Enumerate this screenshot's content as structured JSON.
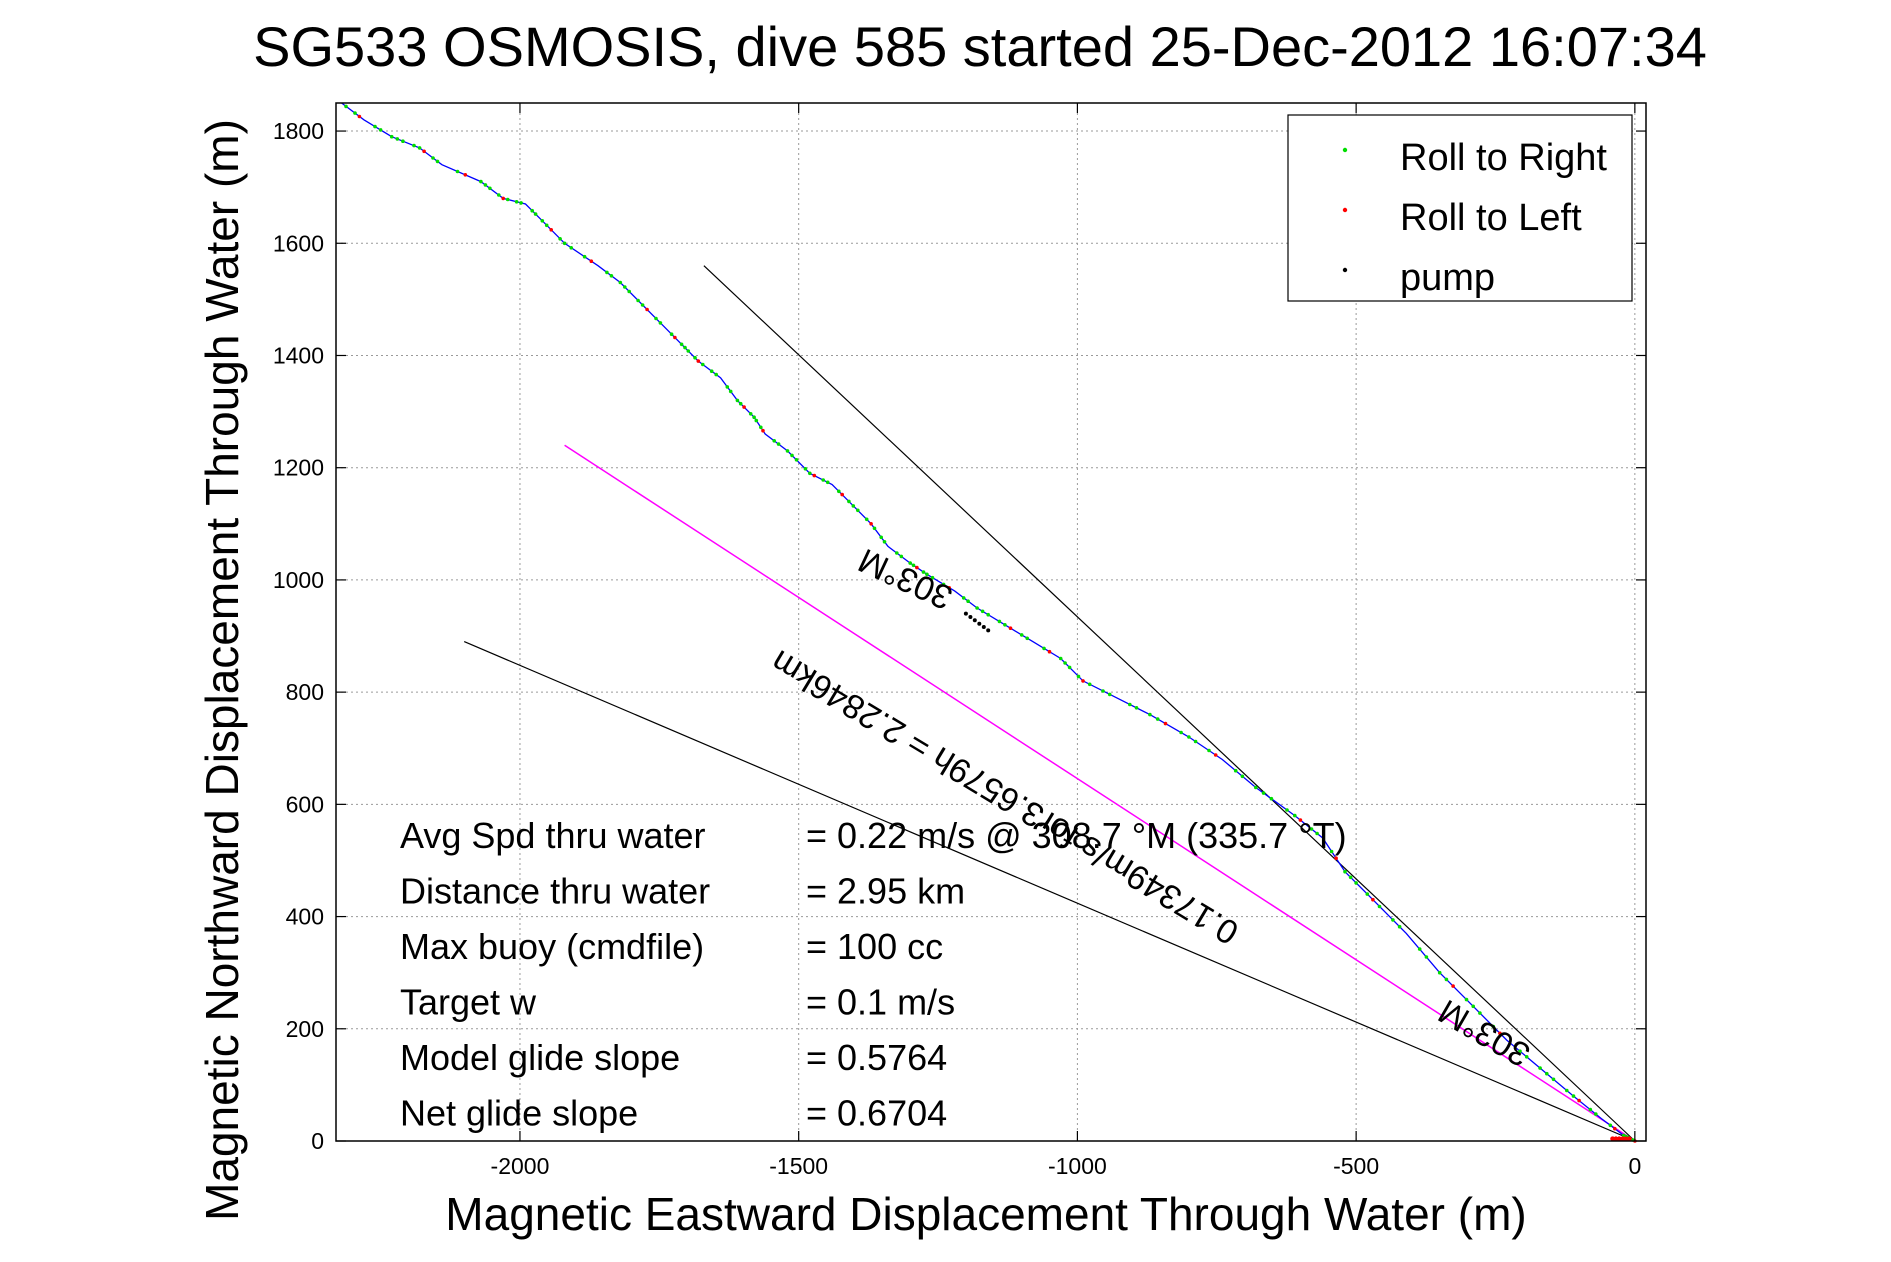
{
  "chart_data": {
    "type": "line",
    "title": "SG533 OSMOSIS, dive 585 started 25-Dec-2012 16:07:34",
    "xlabel": "Magnetic Eastward Displacement Through Water (m)",
    "ylabel": "Magnetic Northward Displacement Through Water (m)",
    "xlim": [
      -2330,
      20
    ],
    "ylim": [
      0,
      1850
    ],
    "xticks": [
      -2000,
      -1500,
      -1000,
      -500,
      0
    ],
    "yticks": [
      0,
      200,
      400,
      600,
      800,
      1000,
      1200,
      1400,
      1600,
      1800
    ],
    "grid": true,
    "legend_position": "top-right",
    "legend": [
      {
        "label": "Roll to Right",
        "color": "#00dd00"
      },
      {
        "label": "Roll to Left",
        "color": "#ff0000"
      },
      {
        "label": "pump",
        "color": "#000000"
      }
    ],
    "colors": {
      "track": "#0000ff",
      "course_line": "#ff00ff",
      "bracket": "#000000"
    },
    "series": [
      {
        "values": [
          [
            0,
            0
          ],
          [
            -20,
            10
          ],
          [
            -60,
            40
          ],
          [
            -110,
            80
          ],
          [
            -170,
            130
          ],
          [
            -230,
            180
          ],
          [
            -290,
            240
          ],
          [
            -350,
            300
          ],
          [
            -410,
            370
          ],
          [
            -470,
            430
          ],
          [
            -520,
            480
          ],
          [
            -560,
            540
          ],
          [
            -610,
            580
          ],
          [
            -680,
            630
          ],
          [
            -740,
            680
          ],
          [
            -800,
            720
          ],
          [
            -870,
            760
          ],
          [
            -930,
            790
          ],
          [
            -990,
            820
          ],
          [
            -1030,
            860
          ],
          [
            -1080,
            890
          ],
          [
            -1130,
            920
          ],
          [
            -1180,
            950
          ],
          [
            -1220,
            980
          ],
          [
            -1270,
            1010
          ],
          [
            -1300,
            1030
          ],
          [
            -1340,
            1060
          ],
          [
            -1370,
            1100
          ],
          [
            -1410,
            1140
          ],
          [
            -1440,
            1170
          ],
          [
            -1480,
            1190
          ],
          [
            -1520,
            1230
          ],
          [
            -1560,
            1260
          ],
          [
            -1580,
            1290
          ],
          [
            -1610,
            1320
          ],
          [
            -1640,
            1360
          ],
          [
            -1680,
            1390
          ],
          [
            -1710,
            1420
          ],
          [
            -1740,
            1450
          ],
          [
            -1780,
            1490
          ],
          [
            -1820,
            1530
          ],
          [
            -1860,
            1560
          ],
          [
            -1920,
            1600
          ],
          [
            -1960,
            1640
          ],
          [
            -1990,
            1670
          ],
          [
            -2030,
            1680
          ],
          [
            -2070,
            1710
          ],
          [
            -2140,
            1740
          ],
          [
            -2180,
            1770
          ],
          [
            -2230,
            1790
          ],
          [
            -2280,
            1820
          ],
          [
            -2320,
            1850
          ]
        ]
      },
      {
        "values": [
          [
            0,
            0
          ],
          [
            -1920,
            1240
          ]
        ]
      }
    ],
    "bracket_lines": [
      {
        "values": [
          [
            0,
            0
          ],
          [
            -1670,
            1560
          ]
        ]
      },
      {
        "values": [
          [
            0,
            0
          ],
          [
            -2100,
            890
          ]
        ]
      }
    ],
    "annotations": [
      {
        "text": "303°M",
        "x": -1300,
        "y": 1020,
        "rotate": 205
      },
      {
        "text": "303°M",
        "x": -260,
        "y": 210,
        "rotate": 210
      },
      {
        "text": "0.17349m/s for3.6579h = 2.2846km",
        "x": -1120,
        "y": 630,
        "rotate": 211
      }
    ],
    "stats": [
      {
        "label": "Avg Spd thru water",
        "value": "=  0.22 m/s @  308.7 °M (335.7 °T)"
      },
      {
        "label": "Distance thru water",
        "value": "=  2.95 km"
      },
      {
        "label": "Max buoy (cmdfile)",
        "value": "= 100 cc"
      },
      {
        "label": "Target w",
        "value": "= 0.1 m/s"
      },
      {
        "label": "Model glide slope",
        "value": "= 0.5764"
      },
      {
        "label": "Net glide slope",
        "value": "= 0.6704"
      }
    ]
  }
}
